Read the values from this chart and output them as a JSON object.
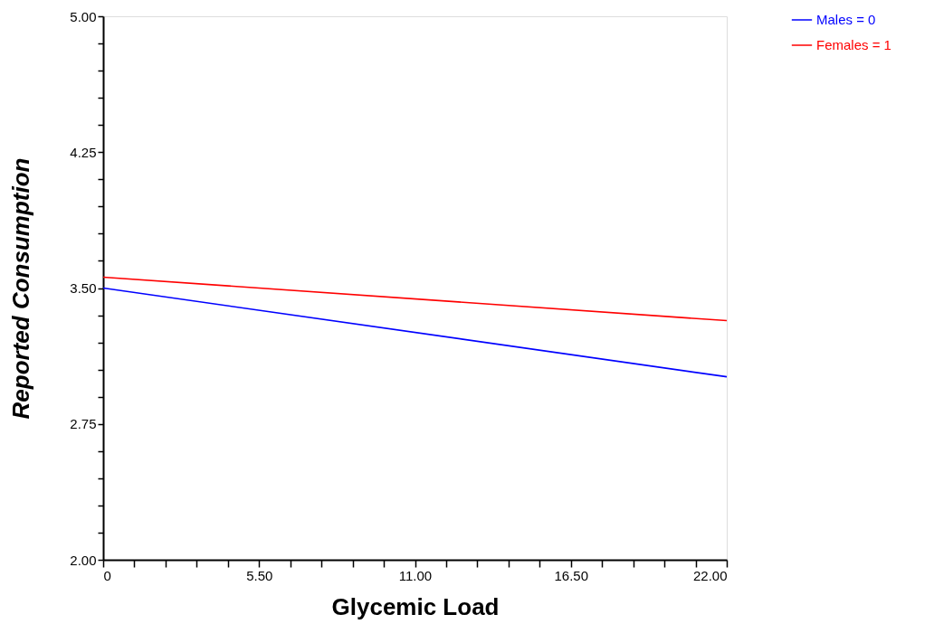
{
  "chart_data": {
    "type": "line",
    "xlabel": "Glycemic Load",
    "ylabel": "Reported Consumption",
    "x": [
      0,
      22
    ],
    "series": [
      {
        "name": "Males = 0",
        "color": "#0000ff",
        "values": [
          3.5,
          3.01
        ]
      },
      {
        "name": "Females = 1",
        "color": "#ff0000",
        "values": [
          3.56,
          3.32
        ]
      }
    ],
    "xlim": [
      0,
      22
    ],
    "ylim": [
      2,
      5
    ],
    "xticks": [
      {
        "value": 0,
        "label": "0"
      },
      {
        "value": 1.1,
        "label": null
      },
      {
        "value": 2.2,
        "label": null
      },
      {
        "value": 3.3,
        "label": null
      },
      {
        "value": 4.4,
        "label": null
      },
      {
        "value": 5.5,
        "label": "5.50"
      },
      {
        "value": 6.6,
        "label": null
      },
      {
        "value": 7.7,
        "label": null
      },
      {
        "value": 8.8,
        "label": null
      },
      {
        "value": 9.9,
        "label": null
      },
      {
        "value": 11,
        "label": "11.00"
      },
      {
        "value": 12.1,
        "label": null
      },
      {
        "value": 13.2,
        "label": null
      },
      {
        "value": 14.3,
        "label": null
      },
      {
        "value": 15.4,
        "label": null
      },
      {
        "value": 16.5,
        "label": "16.50"
      },
      {
        "value": 17.6,
        "label": null
      },
      {
        "value": 18.7,
        "label": null
      },
      {
        "value": 19.8,
        "label": null
      },
      {
        "value": 20.9,
        "label": null
      },
      {
        "value": 22,
        "label": "22.00"
      }
    ],
    "yticks": [
      {
        "value": 2,
        "label": "2.00"
      },
      {
        "value": 2.15,
        "label": null
      },
      {
        "value": 2.3,
        "label": null
      },
      {
        "value": 2.45,
        "label": null
      },
      {
        "value": 2.6,
        "label": null
      },
      {
        "value": 2.75,
        "label": "2.75"
      },
      {
        "value": 2.9,
        "label": null
      },
      {
        "value": 3.05,
        "label": null
      },
      {
        "value": 3.2,
        "label": null
      },
      {
        "value": 3.35,
        "label": null
      },
      {
        "value": 3.5,
        "label": "3.50"
      },
      {
        "value": 3.65,
        "label": null
      },
      {
        "value": 3.8,
        "label": null
      },
      {
        "value": 3.95,
        "label": null
      },
      {
        "value": 4.1,
        "label": null
      },
      {
        "value": 4.25,
        "label": "4.25"
      },
      {
        "value": 4.4,
        "label": null
      },
      {
        "value": 4.55,
        "label": null
      },
      {
        "value": 4.7,
        "label": null
      },
      {
        "value": 4.85,
        "label": null
      },
      {
        "value": 5,
        "label": "5.00"
      }
    ],
    "grid": false,
    "legend": "top right",
    "marker": "none",
    "line_style": "solid"
  }
}
